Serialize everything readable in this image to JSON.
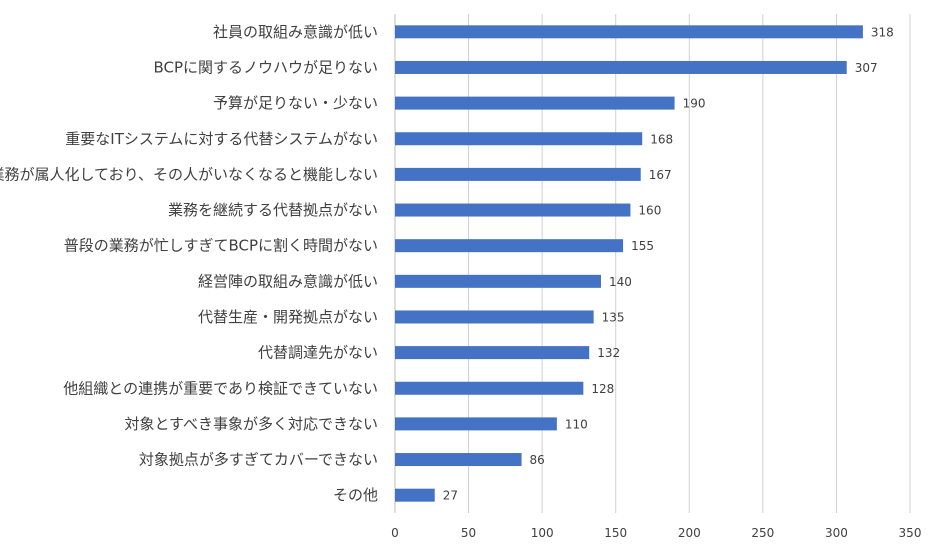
{
  "chart_data": {
    "type": "bar",
    "orientation": "horizontal",
    "title": "",
    "xlabel": "",
    "ylabel": "",
    "categories": [
      "社員の取組み意識が低い",
      "BCPに関するノウハウが足りない",
      "予算が足りない・少ない",
      "重要なITシステムに対する代替システムがない",
      "業務が属人化しており、その人がいなくなると機能しない",
      "業務を継続する代替拠点がない",
      "普段の業務が忙しすぎてBCPに割く時間がない",
      "経営陣の取組み意識が低い",
      "代替生産・開発拠点がない",
      "代替調達先がない",
      "他組織との連携が重要であり検証できていない",
      "対象とすべき事象が多く対応できない",
      "対象拠点が多すぎてカバーできない",
      "その他"
    ],
    "values": [
      318,
      307,
      190,
      168,
      167,
      160,
      155,
      140,
      135,
      132,
      128,
      110,
      86,
      27
    ],
    "xlim": [
      0,
      350
    ],
    "xticks": [
      "0",
      "50",
      "100",
      "150",
      "200",
      "250",
      "300",
      "350"
    ],
    "grid": true,
    "legend": "none",
    "bar_color": "#4472c4"
  }
}
